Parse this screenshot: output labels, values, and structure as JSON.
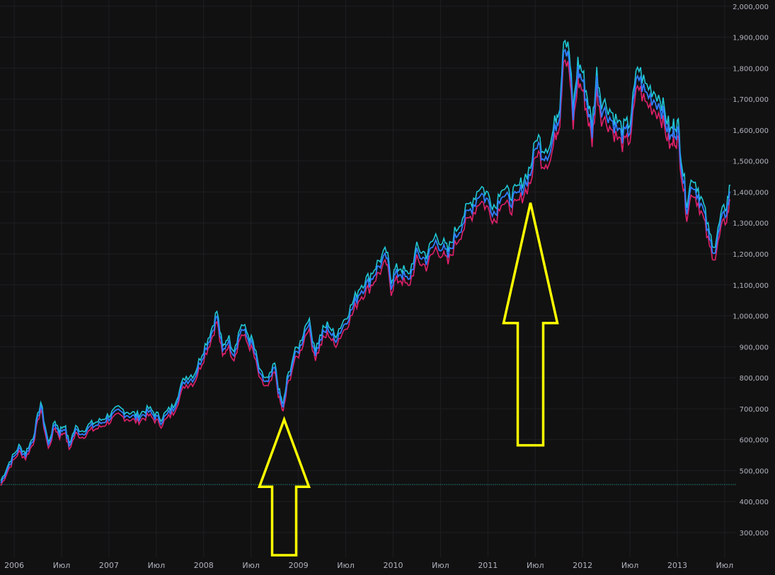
{
  "theme": {
    "background": "#111112",
    "grid": "#1f1f22",
    "axis_text": "#b2b5be",
    "series_main": "#2f7dff",
    "series_high": "#1fc7d4",
    "series_low": "#e0206a",
    "arrow": "#ffff00",
    "baseline": "#26a69a"
  },
  "chart_data": {
    "type": "line",
    "title": "",
    "xlabel": "",
    "ylabel": "",
    "grid": true,
    "y_axis_side": "right",
    "ylim": [
      220000,
      2020000
    ],
    "xlim": [
      2005.85,
      2013.62
    ],
    "yticks": [
      2000000,
      1900000,
      1800000,
      1700000,
      1600000,
      1500000,
      1400000,
      1300000,
      1200000,
      1100000,
      1000000,
      900000,
      800000,
      700000,
      600000,
      500000,
      400000,
      300000
    ],
    "ytick_labels": [
      "2,000,000",
      "1,900,000",
      "1,800,000",
      "1,700,000",
      "1,600,000",
      "1,500,000",
      "1,400,000",
      "1,300,000",
      "1,200,000",
      "1,100,000",
      "1,000,000",
      "900,000",
      "800,000",
      "700,000",
      "600,000",
      "500,000",
      "400,000",
      "300,000"
    ],
    "xticks": [
      2006.0,
      2006.5,
      2007.0,
      2007.5,
      2008.0,
      2008.5,
      2009.0,
      2009.5,
      2010.0,
      2010.5,
      2011.0,
      2011.5,
      2012.0,
      2012.5,
      2013.0,
      2013.5
    ],
    "xtick_labels": [
      "2006",
      "Июл",
      "2007",
      "Июл",
      "2008",
      "Июл",
      "2009",
      "Июл",
      "2010",
      "Июл",
      "2011",
      "Июл",
      "2012",
      "Июл",
      "2013",
      "Июл"
    ],
    "series": [
      {
        "x": [
          2005.86,
          2005.95,
          2006.05,
          2006.12,
          2006.2,
          2006.28,
          2006.36,
          2006.43,
          2006.48,
          2006.53,
          2006.58,
          2006.65,
          2006.72,
          2006.8,
          2006.9,
          2007.0,
          2007.1,
          2007.2,
          2007.3,
          2007.42,
          2007.55,
          2007.68,
          2007.8,
          2007.9,
          2008.0,
          2008.08,
          2008.14,
          2008.2,
          2008.25,
          2008.32,
          2008.4,
          2008.52,
          2008.6,
          2008.68,
          2008.75,
          2008.8,
          2008.84,
          2008.88,
          2008.95,
          2009.02,
          2009.1,
          2009.18,
          2009.26,
          2009.32,
          2009.38,
          2009.46,
          2009.55,
          2009.65,
          2009.75,
          2009.85,
          2009.93,
          2009.98,
          2010.02,
          2010.08,
          2010.16,
          2010.25,
          2010.35,
          2010.45,
          2010.52,
          2010.58,
          2010.65,
          2010.75,
          2010.85,
          2010.92,
          2011.0,
          2011.08,
          2011.14,
          2011.22,
          2011.3,
          2011.38,
          2011.45,
          2011.52,
          2011.58,
          2011.66,
          2011.72,
          2011.76,
          2011.8,
          2011.86,
          2011.9,
          2011.95,
          2012.0,
          2012.05,
          2012.1,
          2012.15,
          2012.2,
          2012.27,
          2012.35,
          2012.42,
          2012.5,
          2012.58,
          2012.66,
          2012.75,
          2012.82,
          2012.88,
          2012.93,
          2012.97,
          2013.01,
          2013.05,
          2013.1,
          2013.16,
          2013.22,
          2013.28,
          2013.34,
          2013.4,
          2013.46,
          2013.52,
          2013.56
        ],
        "y": [
          460000,
          520000,
          570000,
          550000,
          600000,
          710000,
          580000,
          650000,
          620000,
          640000,
          580000,
          630000,
          620000,
          640000,
          650000,
          670000,
          690000,
          680000,
          670000,
          690000,
          660000,
          700000,
          790000,
          800000,
          880000,
          940000,
          1000000,
          880000,
          920000,
          880000,
          960000,
          900000,
          800000,
          780000,
          830000,
          740000,
          700000,
          780000,
          860000,
          900000,
          980000,
          880000,
          940000,
          960000,
          920000,
          960000,
          1010000,
          1080000,
          1110000,
          1160000,
          1190000,
          1100000,
          1130000,
          1140000,
          1110000,
          1200000,
          1180000,
          1240000,
          1220000,
          1190000,
          1250000,
          1310000,
          1360000,
          1400000,
          1370000,
          1330000,
          1400000,
          1370000,
          1380000,
          1420000,
          1460000,
          1560000,
          1520000,
          1530000,
          1620000,
          1660000,
          1880000,
          1820000,
          1640000,
          1790000,
          1760000,
          1680000,
          1590000,
          1760000,
          1670000,
          1650000,
          1610000,
          1580000,
          1600000,
          1780000,
          1720000,
          1700000,
          1680000,
          1620000,
          1570000,
          1600000,
          1590000,
          1470000,
          1350000,
          1430000,
          1390000,
          1330000,
          1240000,
          1210000,
          1300000,
          1340000,
          1400000
        ]
      }
    ],
    "annotations": [
      {
        "type": "arrow-up",
        "tip_x": 2008.85,
        "tip_y": 665000,
        "base_y": 220000
      },
      {
        "type": "arrow-up",
        "tip_x": 2011.45,
        "tip_y": 1365000,
        "base_y": 575000
      }
    ],
    "baseline_y": 455000
  }
}
